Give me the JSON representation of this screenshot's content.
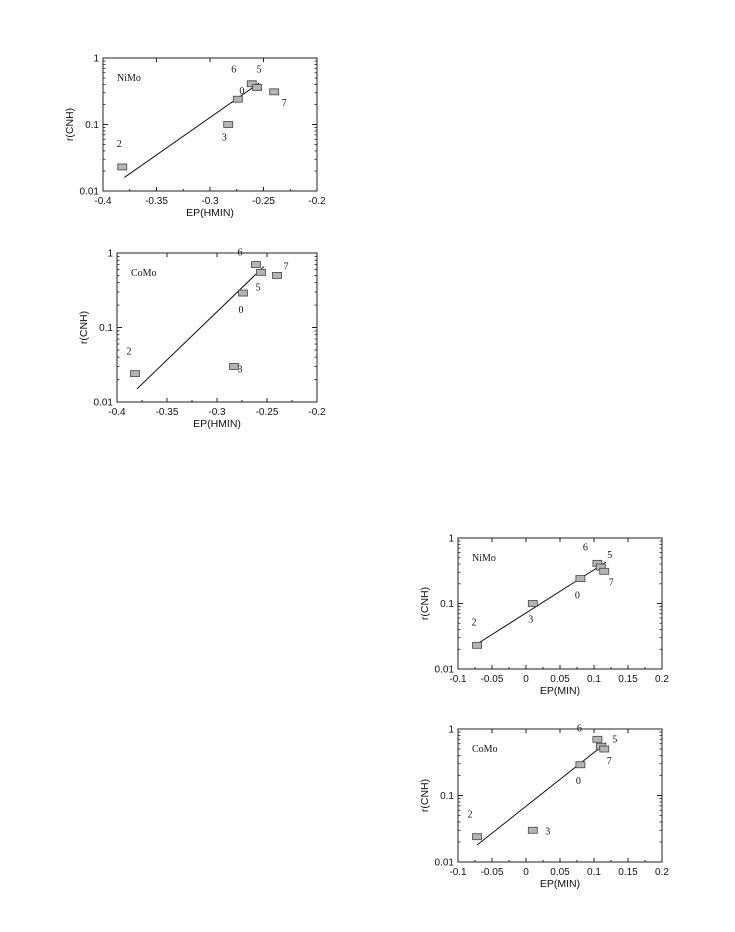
{
  "chart_data": [
    {
      "type": "scatter",
      "panel_label": "NiMo",
      "xlabel": "EP(HMIN)",
      "ylabel": "r(CNH)",
      "xlim": [
        -0.4,
        -0.2
      ],
      "ylim": [
        0.01,
        1
      ],
      "y_scale": "log",
      "x_ticks": [
        "-0.4",
        "-0.35",
        "-0.3",
        "-0.25",
        "-0.2"
      ],
      "y_ticks": [
        "0.01",
        "0.1",
        "1"
      ],
      "points": [
        {
          "label": "2",
          "x": -0.382,
          "y": 0.023
        },
        {
          "label": "3",
          "x": -0.283,
          "y": 0.1
        },
        {
          "label": "0",
          "x": -0.274,
          "y": 0.24
        },
        {
          "label": "6",
          "x": -0.261,
          "y": 0.41
        },
        {
          "label": "5",
          "x": -0.256,
          "y": 0.36
        },
        {
          "label": "7",
          "x": -0.24,
          "y": 0.31
        }
      ],
      "fit_line": {
        "x": [
          -0.38,
          -0.254
        ],
        "y": [
          0.016,
          0.42
        ]
      }
    },
    {
      "type": "scatter",
      "panel_label": "CoMo",
      "xlabel": "EP(HMIN)",
      "ylabel": "r(CNH)",
      "xlim": [
        -0.4,
        -0.2
      ],
      "ylim": [
        0.01,
        1
      ],
      "y_scale": "log",
      "x_ticks": [
        "-0.4",
        "-0.35",
        "-0.3",
        "-0.25",
        "-0.2"
      ],
      "y_ticks": [
        "0.01",
        "0.1",
        "1"
      ],
      "points": [
        {
          "label": "2",
          "x": -0.382,
          "y": 0.024
        },
        {
          "label": "3",
          "x": -0.283,
          "y": 0.03
        },
        {
          "label": "0",
          "x": -0.274,
          "y": 0.29
        },
        {
          "label": "6",
          "x": -0.261,
          "y": 0.7
        },
        {
          "label": "5",
          "x": -0.256,
          "y": 0.55
        },
        {
          "label": "7",
          "x": -0.24,
          "y": 0.5
        }
      ],
      "fit_line": {
        "x": [
          -0.38,
          -0.253
        ],
        "y": [
          0.015,
          0.66
        ]
      }
    },
    {
      "type": "scatter",
      "panel_label": "NiMo",
      "xlabel": "EP(MIN)",
      "ylabel": "r(CNH)",
      "xlim": [
        -0.1,
        0.2
      ],
      "ylim": [
        0.01,
        1
      ],
      "y_scale": "log",
      "x_ticks": [
        "-0.1",
        "-0.05",
        "0",
        "0.05",
        "0.1",
        "0.15",
        "0.2"
      ],
      "y_ticks": [
        "0.01",
        "0.1",
        "1"
      ],
      "points": [
        {
          "label": "2",
          "x": -0.072,
          "y": 0.023
        },
        {
          "label": "3",
          "x": 0.01,
          "y": 0.1
        },
        {
          "label": "0",
          "x": 0.08,
          "y": 0.24
        },
        {
          "label": "6",
          "x": 0.105,
          "y": 0.41
        },
        {
          "label": "5",
          "x": 0.11,
          "y": 0.36
        },
        {
          "label": "7",
          "x": 0.115,
          "y": 0.31
        }
      ],
      "fit_line": {
        "x": [
          -0.075,
          0.118
        ],
        "y": [
          0.023,
          0.43
        ]
      }
    },
    {
      "type": "scatter",
      "panel_label": "CoMo",
      "xlabel": "EP(MIN)",
      "ylabel": "r(CNH)",
      "xlim": [
        -0.1,
        0.2
      ],
      "ylim": [
        0.01,
        1
      ],
      "y_scale": "log",
      "x_ticks": [
        "-0.1",
        "-0.05",
        "0",
        "0.05",
        "0.1",
        "0.15",
        "0.2"
      ],
      "y_ticks": [
        "0.01",
        "0.1",
        "1"
      ],
      "points": [
        {
          "label": "2",
          "x": -0.072,
          "y": 0.024
        },
        {
          "label": "3",
          "x": 0.01,
          "y": 0.03
        },
        {
          "label": "0",
          "x": 0.08,
          "y": 0.29
        },
        {
          "label": "6",
          "x": 0.105,
          "y": 0.7
        },
        {
          "label": "5",
          "x": 0.11,
          "y": 0.55
        },
        {
          "label": "7",
          "x": 0.115,
          "y": 0.5
        }
      ],
      "fit_line": {
        "x": [
          -0.072,
          0.118
        ],
        "y": [
          0.018,
          0.62
        ]
      }
    }
  ],
  "colors": {
    "marker_fill": "#b4b4b4",
    "marker_stroke": "#444444",
    "line": "#111111",
    "frame": "#222222"
  }
}
